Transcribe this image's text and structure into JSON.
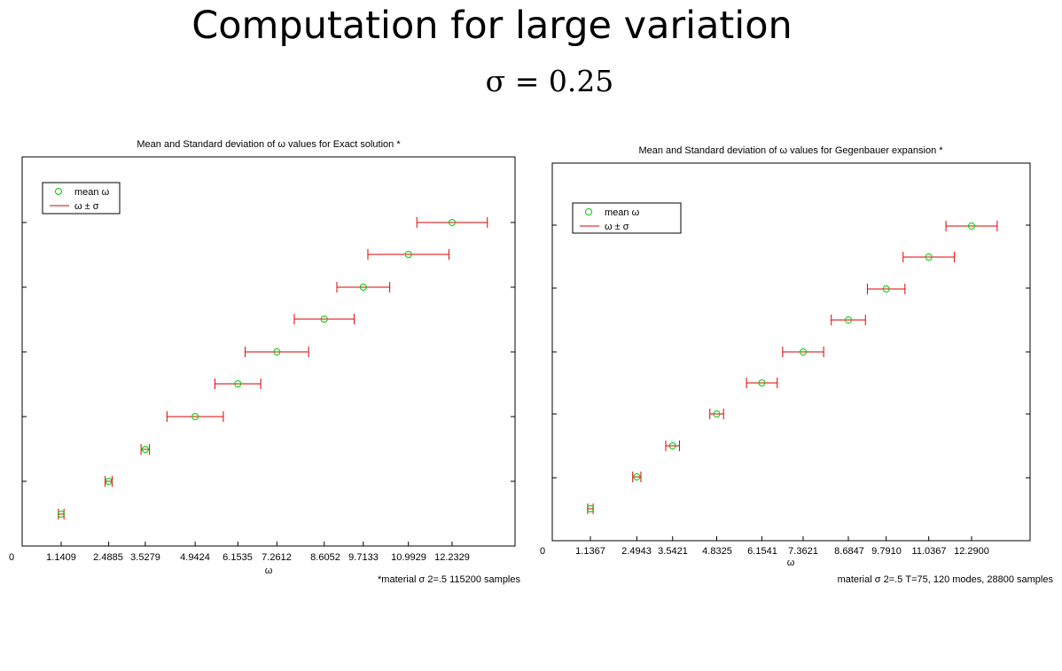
{
  "slide": {
    "title": "Computation for large variation",
    "subtitle": "σ = 0.25"
  },
  "chart_data": [
    {
      "type": "scatter",
      "title": "Mean and Standard deviation of ω values for Exact solution *",
      "xlabel": "ω",
      "ylabel": "",
      "x_tick_labels": [
        "0",
        "1.1409",
        "2.4885",
        "3.5279",
        "4.9424",
        "6.1535",
        "7.2612",
        "8.6052",
        "9.7133",
        "10.9929",
        "12.2329"
      ],
      "footnote": "*material σ 2=.5  115200 samples",
      "legend": {
        "position": "top-left",
        "entries": [
          "mean ω",
          "ω ± σ"
        ]
      },
      "grid": false,
      "series": [
        {
          "name": "mean ω",
          "mark": "circle",
          "color": "#00cc00",
          "values": [
            1.1409,
            2.4885,
            3.5279,
            4.9424,
            6.1535,
            7.2612,
            8.6052,
            9.7133,
            10.9929,
            12.2329
          ]
        },
        {
          "name": "ω ± σ",
          "mark": "errorbar",
          "color": "#dd0000",
          "sigma": [
            0.08,
            0.1,
            0.12,
            0.8,
            0.65,
            0.9,
            0.85,
            0.75,
            1.15,
            1.0
          ]
        }
      ]
    },
    {
      "type": "scatter",
      "title": "Mean and Standard deviation of ω  values for Gegenbauer expansion *",
      "xlabel": "ω",
      "ylabel": "",
      "x_tick_labels": [
        "0",
        "1.1367",
        "2.4943",
        "3.5421",
        "4.8325",
        "6.1541",
        "7.3621",
        "8.6847",
        "9.7910",
        "11.0367",
        "12.2900"
      ],
      "footnote": "material σ 2=.5  T=75, 120 modes, 28800 samples",
      "legend": {
        "position": "top-left",
        "entries": [
          "mean ω",
          "ω ± σ"
        ]
      },
      "grid": false,
      "series": [
        {
          "name": "mean ω",
          "mark": "circle",
          "color": "#00cc00",
          "values": [
            1.1367,
            2.4943,
            3.5421,
            4.8325,
            6.1541,
            7.3621,
            8.6847,
            9.791,
            11.0367,
            12.29
          ]
        },
        {
          "name": "ω ± σ",
          "mark": "errorbar",
          "color": "#dd0000",
          "sigma": [
            0.08,
            0.12,
            0.2,
            0.2,
            0.45,
            0.6,
            0.5,
            0.55,
            0.75,
            0.75
          ]
        }
      ]
    }
  ]
}
